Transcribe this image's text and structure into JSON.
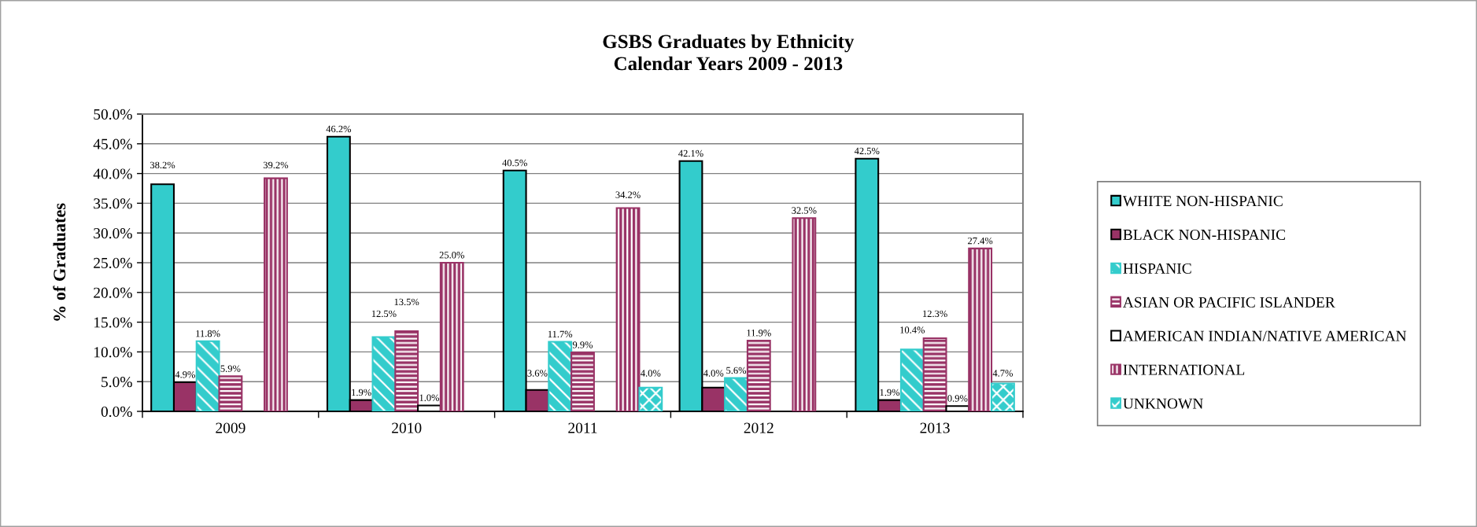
{
  "chart_data": {
    "type": "bar",
    "title": "GSBS Graduates by Ethnicity",
    "subtitle": "Calendar Years 2009 - 2013",
    "ylabel": "% of Graduates",
    "categories": [
      "2009",
      "2010",
      "2011",
      "2012",
      "2013"
    ],
    "series": [
      {
        "name": "WHITE NON-HISPANIC",
        "color": "#33cccc",
        "values": [
          38.2,
          46.2,
          40.5,
          42.1,
          42.5
        ],
        "value_labels": [
          "38.2%",
          "46.2%",
          "40.5%",
          "42.1%",
          "42.5%"
        ]
      },
      {
        "name": "BLACK NON-HISPANIC",
        "color": "#993366",
        "values": [
          4.9,
          1.9,
          3.6,
          4.0,
          1.9
        ],
        "value_labels": [
          "4.9%",
          "1.9%",
          "3.6%",
          "4.0%",
          "1.9%"
        ]
      },
      {
        "name": "HISPANIC",
        "color": "#33cccc",
        "values": [
          11.8,
          12.5,
          11.7,
          5.6,
          10.4
        ],
        "value_labels": [
          "11.8%",
          "12.5%",
          "11.7%",
          "5.6%",
          "10.4%"
        ]
      },
      {
        "name": "ASIAN OR PACIFIC ISLANDER",
        "color": "#993366",
        "values": [
          5.9,
          13.5,
          9.9,
          11.9,
          12.3
        ],
        "value_labels": [
          "5.9%",
          "13.5%",
          "9.9%",
          "11.9%",
          "12.3%"
        ]
      },
      {
        "name": "AMERICAN INDIAN/NATIVE AMERICAN",
        "color": "#ffffff",
        "values": [
          null,
          1.0,
          null,
          null,
          0.9
        ],
        "value_labels": [
          null,
          "1.0%",
          null,
          null,
          "0.9%"
        ]
      },
      {
        "name": "INTERNATIONAL",
        "color": "#993366",
        "values": [
          39.2,
          25.0,
          34.2,
          32.5,
          27.4
        ],
        "value_labels": [
          "39.2%",
          "25.0%",
          "34.2%",
          "32.5%",
          "27.4%"
        ]
      },
      {
        "name": "UNKNOWN",
        "color": "#33cccc",
        "values": [
          null,
          null,
          4.0,
          null,
          4.7
        ],
        "value_labels": [
          null,
          null,
          "4.0%",
          null,
          "4.7%"
        ]
      }
    ],
    "ylim": [
      0,
      50
    ],
    "yticks": [
      {
        "value": 0,
        "label": "0.0%"
      },
      {
        "value": 5,
        "label": "5.0%"
      },
      {
        "value": 10,
        "label": "10.0%"
      },
      {
        "value": 15,
        "label": "15.0%"
      },
      {
        "value": 20,
        "label": "20.0%"
      },
      {
        "value": 25,
        "label": "25.0%"
      },
      {
        "value": 30,
        "label": "30.0%"
      },
      {
        "value": 35,
        "label": "35.0%"
      },
      {
        "value": 40,
        "label": "40.0%"
      },
      {
        "value": 45,
        "label": "45.0%"
      },
      {
        "value": 50,
        "label": "50.0%"
      }
    ],
    "grid": "y",
    "legend": "right"
  }
}
